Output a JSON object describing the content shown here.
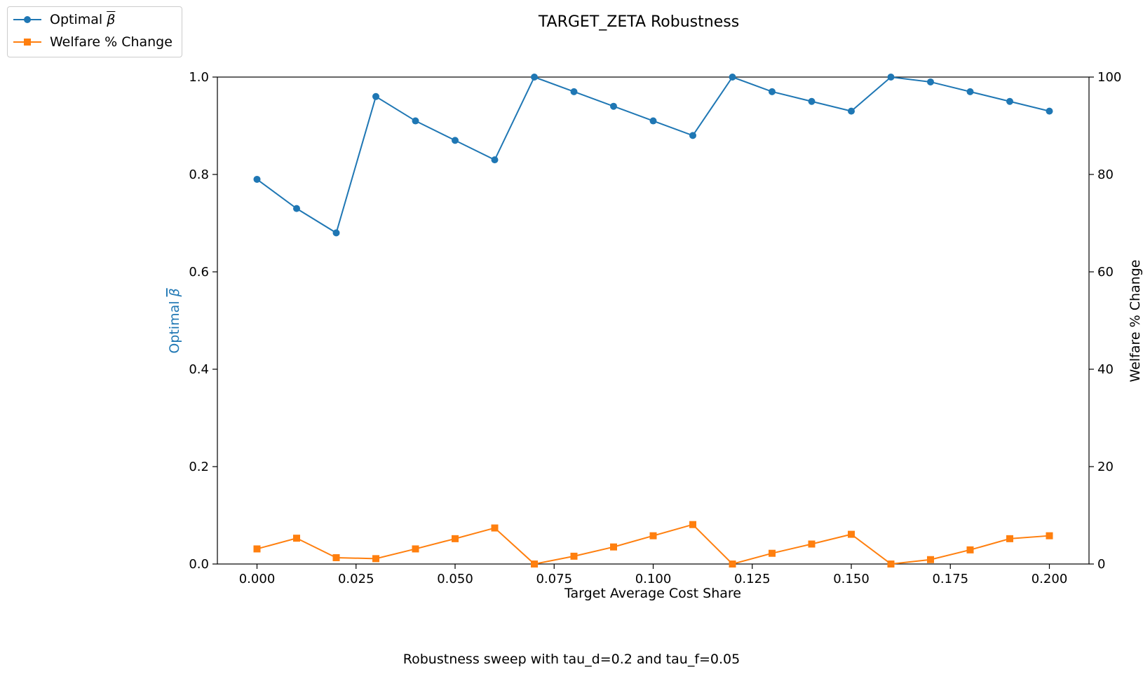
{
  "chart_data": {
    "type": "line",
    "title": "TARGET_ZETA Robustness",
    "caption": "Robustness sweep with tau_d=0.2 and tau_f=0.05",
    "xlabel": "Target Average Cost Share",
    "ylabel_left": "Optimal ",
    "ylabel_left_symbol": "β",
    "ylabel_right": "Welfare % Change",
    "x": [
      0.0,
      0.01,
      0.02,
      0.03,
      0.04,
      0.05,
      0.06,
      0.07,
      0.08,
      0.09,
      0.1,
      0.11,
      0.12,
      0.13,
      0.14,
      0.15,
      0.16,
      0.17,
      0.18,
      0.19,
      0.2
    ],
    "xlim": [
      -0.01,
      0.21
    ],
    "xticks": [
      0.0,
      0.025,
      0.05,
      0.075,
      0.1,
      0.125,
      0.15,
      0.175,
      0.2
    ],
    "xtick_labels": [
      "0.000",
      "0.025",
      "0.050",
      "0.075",
      "0.100",
      "0.125",
      "0.150",
      "0.175",
      "0.200"
    ],
    "ylim_left": [
      0,
      1
    ],
    "yticks_left": [
      "0.0",
      "0.2",
      "0.4",
      "0.6",
      "0.8",
      "1.0"
    ],
    "ylim_right": [
      0,
      100
    ],
    "yticks_right": [
      "0",
      "20",
      "40",
      "60",
      "80",
      "100"
    ],
    "grid": false,
    "legend_position": "top-left (outside plot)",
    "series": [
      {
        "name": "Optimal ",
        "name_symbol": "β",
        "axis": "left",
        "color": "#1f77b4",
        "marker": "circle",
        "values": [
          0.79,
          0.73,
          0.68,
          0.96,
          0.91,
          0.87,
          0.83,
          1.0,
          0.97,
          0.94,
          0.91,
          0.88,
          1.0,
          0.97,
          0.95,
          0.93,
          1.0,
          0.99,
          0.97,
          0.95,
          0.93
        ]
      },
      {
        "name": "Welfare % Change",
        "axis": "right",
        "color": "#ff7f0e",
        "marker": "square",
        "values": [
          3.1,
          5.3,
          1.3,
          1.1,
          3.1,
          5.2,
          7.4,
          0.0,
          1.6,
          3.5,
          5.8,
          8.1,
          0.0,
          2.2,
          4.1,
          6.1,
          0.0,
          0.9,
          2.9,
          5.2,
          5.8
        ]
      }
    ]
  }
}
